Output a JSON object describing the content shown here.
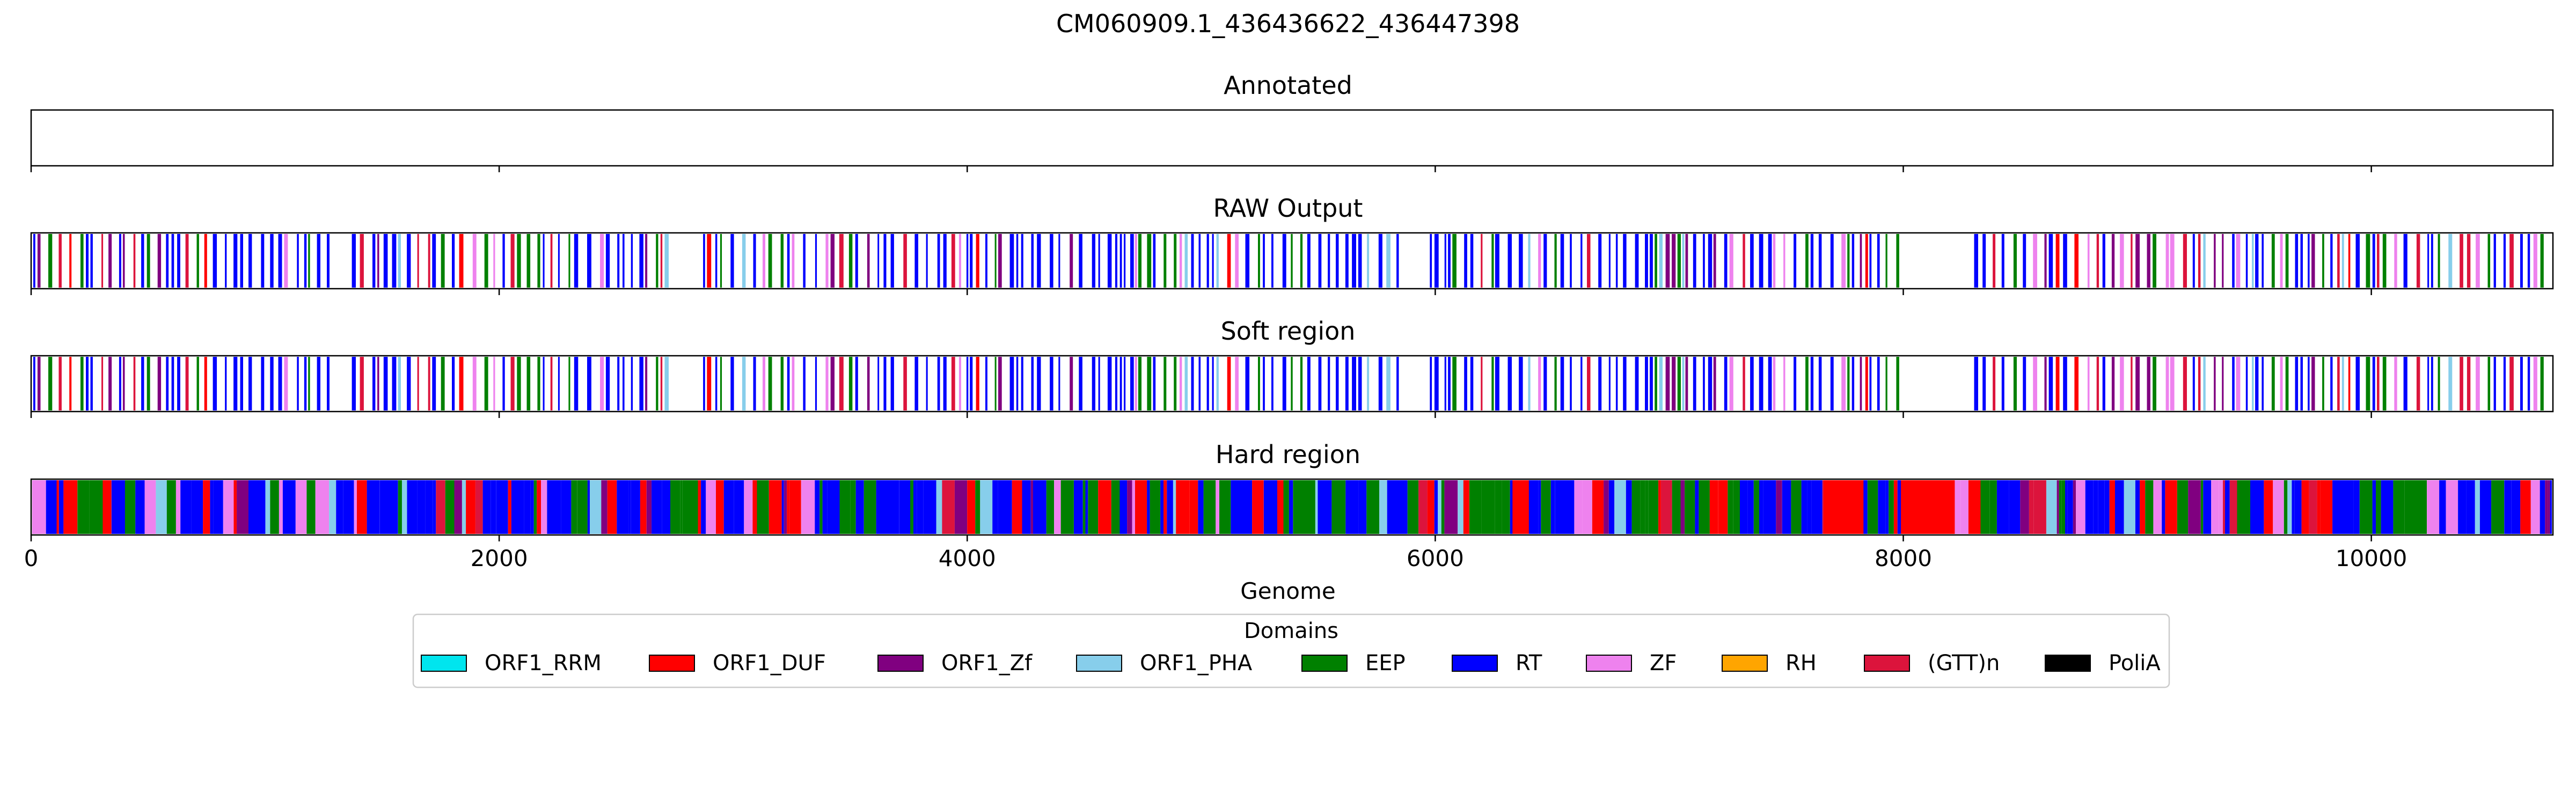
{
  "chart_data": {
    "type": "genome_tracks",
    "title": "CM060909.1_436436622_436447398",
    "xlabel": "Genome",
    "xlim": [
      0,
      10776
    ],
    "x_ticks": [
      0,
      2000,
      4000,
      6000,
      8000,
      10000
    ],
    "x_tick_labels": [
      "0",
      "2000",
      "4000",
      "6000",
      "8000",
      "10000"
    ],
    "tracks": [
      {
        "title": "Annotated",
        "show_tick_labels": false
      },
      {
        "title": "RAW Output",
        "show_tick_labels": false
      },
      {
        "title": "Soft region",
        "show_tick_labels": false
      },
      {
        "title": "Hard region",
        "show_tick_labels": true
      }
    ],
    "legend": {
      "title": "Domains",
      "placement": "bottom-center",
      "entries": [
        {
          "label": "ORF1_RRM",
          "color": "#00e5ee"
        },
        {
          "label": "ORF1_DUF",
          "color": "#ff0000"
        },
        {
          "label": "ORF1_Zf",
          "color": "#800080"
        },
        {
          "label": "ORF1_PHA",
          "color": "#87ceeb"
        },
        {
          "label": "EEP",
          "color": "#008000"
        },
        {
          "label": "RT",
          "color": "#0000ff"
        },
        {
          "label": "ZF",
          "color": "#ee82ee"
        },
        {
          "label": "RH",
          "color": "#ffa500"
        },
        {
          "label": "(GTT)n",
          "color": "#dc143c"
        },
        {
          "label": "PoliA",
          "color": "#000000"
        }
      ]
    }
  }
}
